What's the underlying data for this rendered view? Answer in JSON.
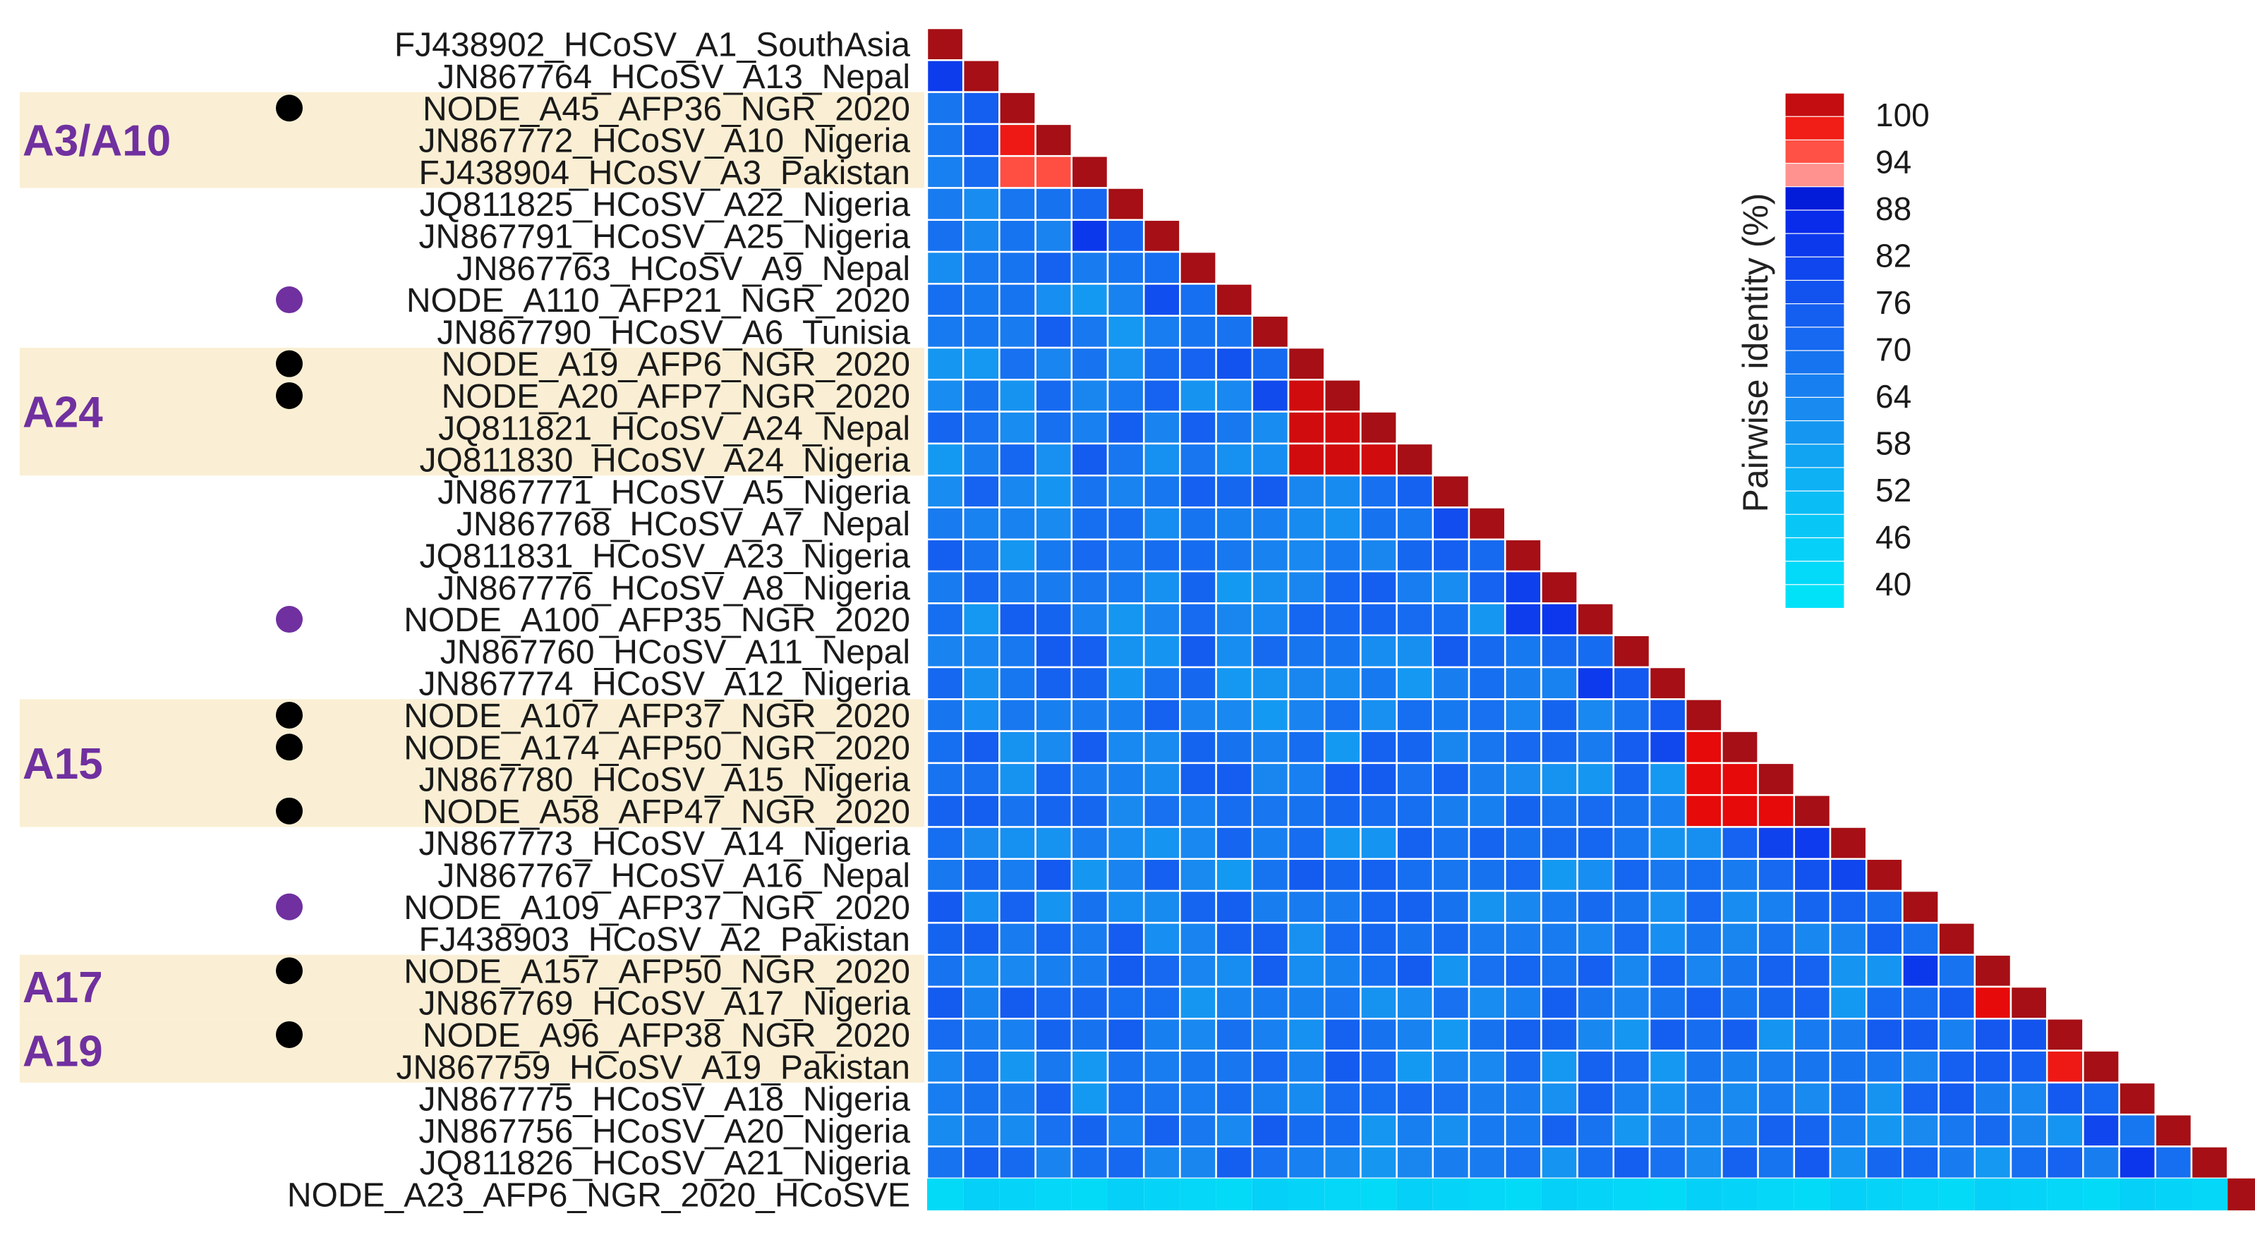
{
  "chart_data": {
    "type": "heatmap",
    "title": "",
    "labels": [
      "FJ438902_HCoSV_A1_SouthAsia",
      "JN867764_HCoSV_A13_Nepal",
      "NODE_A45_AFP36_NGR_2020",
      "JN867772_HCoSV_A10_Nigeria",
      "FJ438904_HCoSV_A3_Pakistan",
      "JQ811825_HCoSV_A22_Nigeria",
      "JN867791_HCoSV_A25_Nigeria",
      "JN867763_HCoSV_A9_Nepal",
      "NODE_A110_AFP21_NGR_2020",
      "JN867790_HCoSV_A6_Tunisia",
      "NODE_A19_AFP6_NGR_2020",
      "NODE_A20_AFP7_NGR_2020",
      "JQ811821_HCoSV_A24_Nepal",
      "JQ811830_HCoSV_A24_Nigeria",
      "JN867771_HCoSV_A5_Nigeria",
      "JN867768_HCoSV_A7_Nepal",
      "JQ811831_HCoSV_A23_Nigeria",
      "JN867776_HCoSV_A8_Nigeria",
      "NODE_A100_AFP35_NGR_2020",
      "JN867760_HCoSV_A11_Nepal",
      "JN867774_HCoSV_A12_Nigeria",
      "NODE_A107_AFP37_NGR_2020",
      "NODE_A174_AFP50_NGR_2020",
      "JN867780_HCoSV_A15_Nigeria",
      "NODE_A58_AFP47_NGR_2020",
      "JN867773_HCoSV_A14_Nigeria",
      "JN867767_HCoSV_A16_Nepal",
      "NODE_A109_AFP37_NGR_2020",
      "FJ438903_HCoSV_A2_Pakistan",
      "NODE_A157_AFP50_NGR_2020",
      "JN867769_HCoSV_A17_Nigeria",
      "NODE_A96_AFP38_NGR_2020",
      "JN867759_HCoSV_A19_Pakistan",
      "JN867775_HCoSV_A18_Nigeria",
      "JN867756_HCoSV_A20_Nigeria",
      "JQ811826_HCoSV_A21_Nigeria",
      "NODE_A23_AFP6_NGR_2020_HCoSVE"
    ],
    "colorbar": {
      "label": "Pairwise identity (%)",
      "ticks": [
        100,
        94,
        88,
        82,
        76,
        70,
        64,
        58,
        52,
        46,
        40
      ],
      "range": [
        37,
        100
      ]
    },
    "cluster_blocks": [
      {
        "start": 2,
        "end": 4,
        "identity": 96,
        "cells": [
          [
            3,
            2,
            96
          ],
          [
            4,
            2,
            93
          ],
          [
            4,
            3,
            93
          ]
        ]
      },
      {
        "start": 10,
        "end": 13,
        "identity": 98,
        "cells": []
      },
      {
        "start": 21,
        "end": 24,
        "identity": 97,
        "cells": []
      },
      {
        "start": 29,
        "end": 30,
        "identity": 97,
        "cells": []
      },
      {
        "start": 31,
        "end": 32,
        "identity": 96,
        "cells": []
      }
    ],
    "groups": [
      {
        "label": "A3/A10",
        "start": 2,
        "end": 4
      },
      {
        "label": "A24",
        "start": 10,
        "end": 13
      },
      {
        "label": "A15",
        "start": 21,
        "end": 24
      },
      {
        "label": "A17",
        "start": 29,
        "end": 30
      },
      {
        "label": "A19",
        "start": 31,
        "end": 32
      }
    ],
    "markers": [
      {
        "row": 2,
        "color": "black"
      },
      {
        "row": 8,
        "color": "purple"
      },
      {
        "row": 10,
        "color": "black"
      },
      {
        "row": 11,
        "color": "black"
      },
      {
        "row": 18,
        "color": "purple"
      },
      {
        "row": 21,
        "color": "black"
      },
      {
        "row": 22,
        "color": "black"
      },
      {
        "row": 24,
        "color": "black"
      },
      {
        "row": 27,
        "color": "purple"
      },
      {
        "row": 29,
        "color": "black"
      },
      {
        "row": 31,
        "color": "black"
      }
    ],
    "colors": {
      "group_band": "#faefd4",
      "group_label": "#7030a0",
      "marker_black": "#000000",
      "marker_purple": "#7030a0",
      "diagonal": "#a50f15"
    }
  }
}
